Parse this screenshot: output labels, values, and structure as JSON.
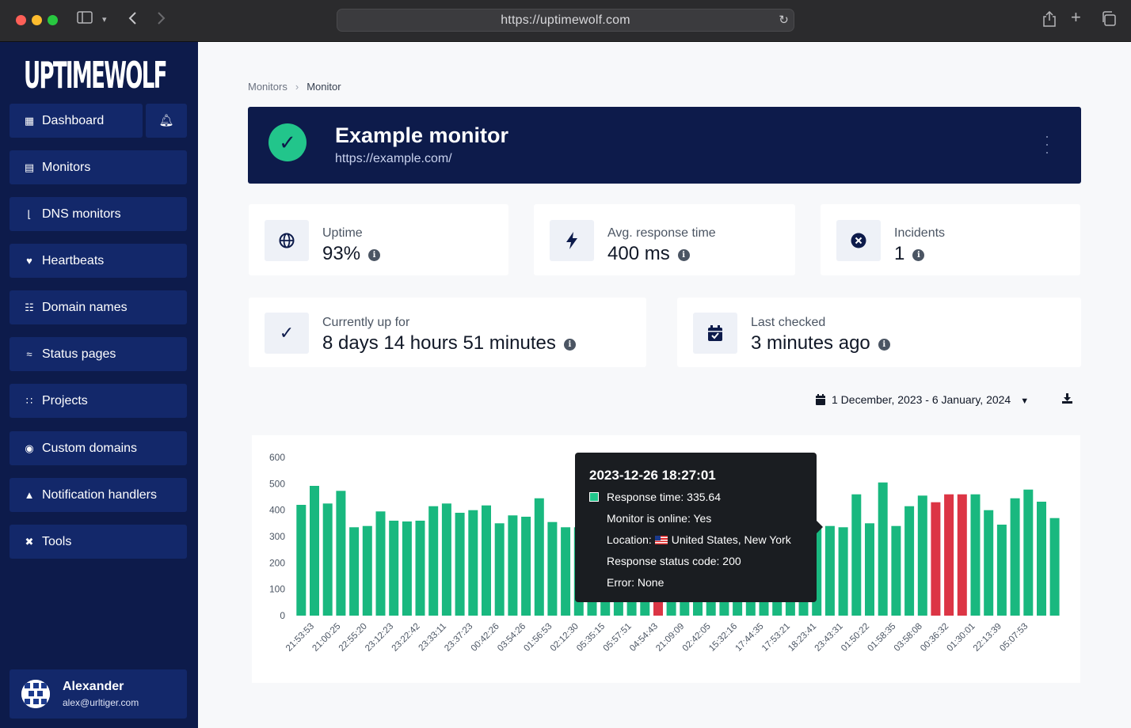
{
  "browser": {
    "url": "https://uptimewolf.com",
    "icons": {
      "sidebar_toggle": "sidebar-icon",
      "back": "back-icon",
      "forward": "forward-icon",
      "share": "share-icon",
      "new_tab": "plus-icon",
      "tabs": "tabs-icon",
      "reload": "reload-icon"
    }
  },
  "sidebar": {
    "logo": "UPTIMEWOLF",
    "items": [
      {
        "label": "Dashboard",
        "icon": "table-icon"
      },
      {
        "label": "Monitors",
        "icon": "server-icon"
      },
      {
        "label": "DNS monitors",
        "icon": "plug-icon"
      },
      {
        "label": "Heartbeats",
        "icon": "heart-pulse-icon"
      },
      {
        "label": "Domain names",
        "icon": "sitemap-icon"
      },
      {
        "label": "Status pages",
        "icon": "wifi-icon"
      },
      {
        "label": "Projects",
        "icon": "project-diagram-icon"
      },
      {
        "label": "Custom domains",
        "icon": "globe-icon"
      },
      {
        "label": "Notification handlers",
        "icon": "bell-icon"
      },
      {
        "label": "Tools",
        "icon": "tools-icon"
      }
    ],
    "user": {
      "name": "Alexander",
      "email": "alex@urltiger.com"
    }
  },
  "breadcrumb": {
    "parent": "Monitors",
    "current": "Monitor"
  },
  "monitor": {
    "name": "Example monitor",
    "url": "https://example.com/",
    "status_color": "#22c58b"
  },
  "stats": {
    "uptime": {
      "label": "Uptime",
      "value": "93%"
    },
    "response": {
      "label": "Avg. response time",
      "value": "400 ms"
    },
    "incidents": {
      "label": "Incidents",
      "value": "1"
    },
    "up_for": {
      "label": "Currently up for",
      "value": "8 days 14 hours 51 minutes"
    },
    "last_checked": {
      "label": "Last checked",
      "value": "3 minutes ago"
    }
  },
  "date_range": "1 December, 2023 - 6 January, 2024",
  "chart_data": {
    "type": "bar",
    "ylim": [
      0,
      600
    ],
    "yticks": [
      0,
      100,
      200,
      300,
      400,
      500,
      600
    ],
    "x_tick_labels": [
      "21:53:53",
      "21:00:25",
      "22:55:20",
      "23:12:23",
      "23:22:42",
      "23:33:11",
      "23:37:23",
      "00:42:26",
      "03:54:26",
      "01:56:53",
      "02:12:30",
      "05:35:15",
      "05:57:51",
      "04:54:43",
      "21:09:09",
      "02:42:05",
      "15:32:16",
      "17:44:35",
      "17:53:21",
      "18:23:41",
      "23:43:31",
      "01:50:22",
      "01:58:35",
      "03:58:08",
      "00:36:32",
      "01:30:01",
      "22:13:39",
      "05:07:53"
    ],
    "values": [
      420,
      492,
      425,
      473,
      335,
      340,
      395,
      360,
      357,
      360,
      415,
      425,
      390,
      400,
      418,
      350,
      380,
      375,
      445,
      355,
      335,
      335,
      335,
      335,
      335,
      335,
      335,
      335,
      335,
      335,
      335,
      335,
      335,
      335,
      335,
      335,
      335,
      335,
      335,
      335,
      340,
      335,
      460,
      350,
      505,
      340,
      415,
      455,
      430,
      460,
      460,
      460,
      400,
      345,
      445,
      478,
      432,
      370
    ],
    "colors": {
      "ok": "#19b87f",
      "error": "#dc3545"
    },
    "error_indices": [
      27,
      48,
      49,
      50
    ]
  },
  "tooltip": {
    "title": "2023-12-26 18:27:01",
    "response": "Response time: 335.64",
    "online": "Monitor is online: Yes",
    "location_label": "Location:",
    "location": "United States, New York",
    "status_code": "Response status code: 200",
    "error": "Error: None"
  }
}
